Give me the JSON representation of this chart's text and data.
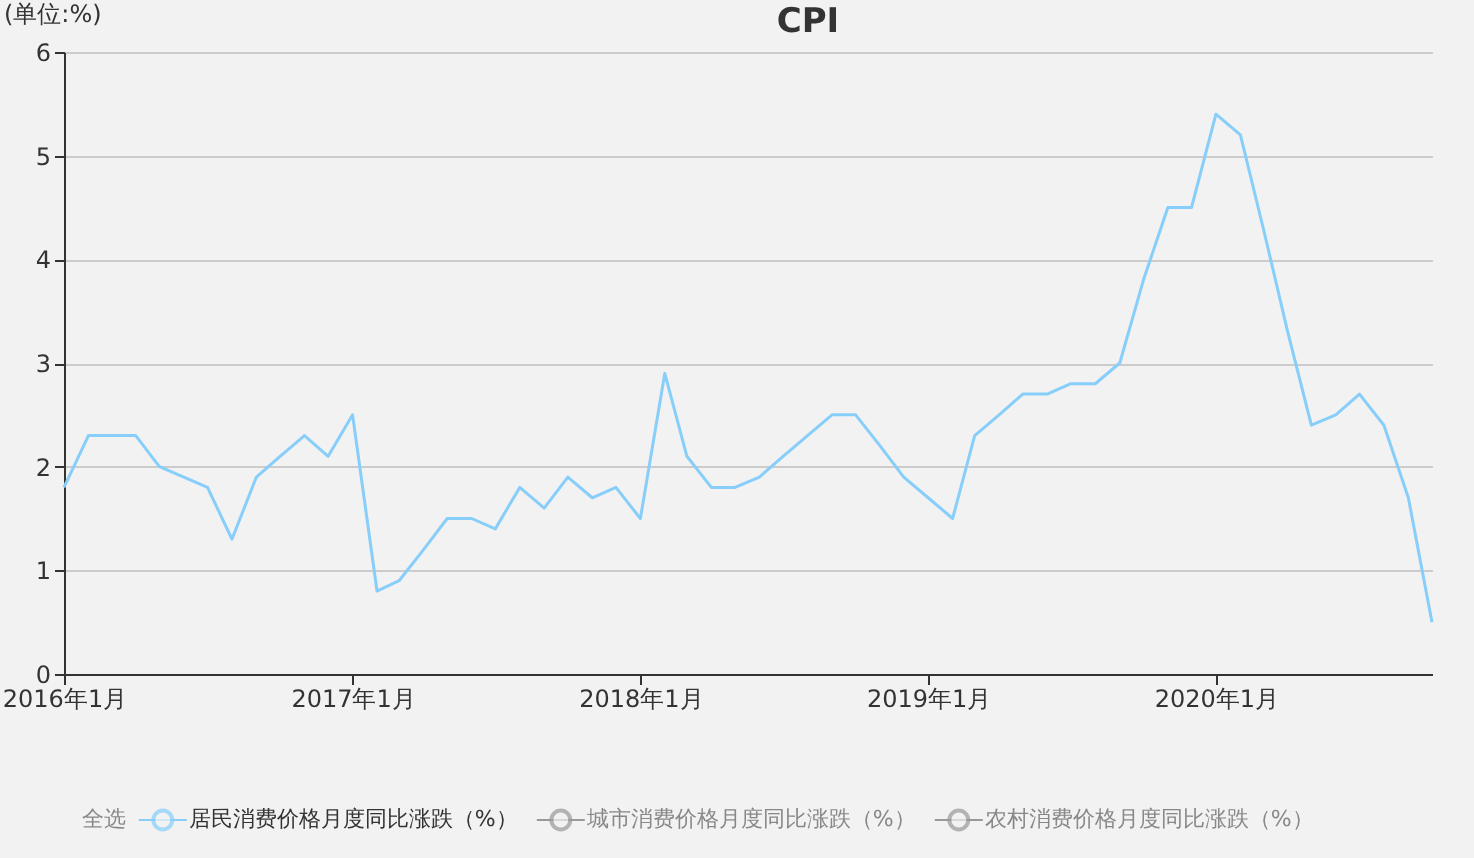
{
  "chart_data": {
    "type": "line",
    "title": "CPI",
    "ylabel": "(单位:%)",
    "x": [
      "2016-01",
      "2016-02",
      "2016-03",
      "2016-04",
      "2016-05",
      "2016-06",
      "2016-07",
      "2016-08",
      "2016-09",
      "2016-10",
      "2016-11",
      "2016-12",
      "2017-01",
      "2017-02",
      "2017-03",
      "2017-04",
      "2017-05",
      "2017-06",
      "2017-07",
      "2017-08",
      "2017-09",
      "2017-10",
      "2017-11",
      "2017-12",
      "2018-01",
      "2018-02",
      "2018-03",
      "2018-04",
      "2018-05",
      "2018-06",
      "2018-07",
      "2018-08",
      "2018-09",
      "2018-10",
      "2018-11",
      "2018-12",
      "2019-01",
      "2019-02",
      "2019-03",
      "2019-04",
      "2019-05",
      "2019-06",
      "2019-07",
      "2019-08",
      "2019-09",
      "2019-10",
      "2019-11",
      "2019-12",
      "2020-01",
      "2020-02",
      "2020-03",
      "2020-04",
      "2020-05",
      "2020-06",
      "2020-07",
      "2020-08",
      "2020-09",
      "2020-10"
    ],
    "series": [
      {
        "name": "居民消费价格月度同比涨跌（%）",
        "color": "#87cefa",
        "values": [
          1.8,
          2.3,
          2.3,
          2.3,
          2.0,
          1.9,
          1.8,
          1.3,
          1.9,
          2.1,
          2.3,
          2.1,
          2.5,
          0.8,
          0.9,
          1.2,
          1.5,
          1.5,
          1.4,
          1.8,
          1.6,
          1.9,
          1.7,
          1.8,
          1.5,
          2.9,
          2.1,
          1.8,
          1.8,
          1.9,
          2.1,
          2.3,
          2.5,
          2.5,
          2.2,
          1.9,
          1.7,
          1.5,
          2.3,
          2.5,
          2.7,
          2.7,
          2.8,
          2.8,
          3.0,
          3.8,
          4.5,
          4.5,
          5.4,
          5.2,
          4.3,
          3.3,
          2.4,
          2.5,
          2.7,
          2.4,
          1.7,
          0.5
        ]
      },
      {
        "name": "城市消费价格月度同比涨跌（%）",
        "color": "#999999",
        "values": [
          null,
          null,
          null,
          null,
          null,
          null,
          null,
          null,
          null,
          null,
          null,
          null,
          null,
          null,
          null,
          null,
          null,
          null,
          null,
          null,
          null,
          null,
          null,
          null,
          null,
          null,
          null,
          null,
          null,
          null,
          null,
          null,
          null,
          null,
          null,
          null,
          null,
          null,
          null,
          null,
          null,
          null,
          null,
          null,
          null,
          null,
          null,
          null,
          null,
          null,
          null,
          null,
          null,
          null,
          null,
          null,
          null,
          null
        ]
      },
      {
        "name": "农村消费价格月度同比涨跌（%）",
        "color": "#999999",
        "values": [
          null,
          null,
          null,
          null,
          null,
          null,
          null,
          null,
          null,
          null,
          null,
          null,
          null,
          null,
          null,
          null,
          null,
          null,
          null,
          null,
          null,
          null,
          null,
          null,
          null,
          null,
          null,
          null,
          null,
          null,
          null,
          null,
          null,
          null,
          null,
          null,
          null,
          null,
          null,
          null,
          null,
          null,
          null,
          null,
          null,
          null,
          null,
          null,
          null,
          null,
          null,
          null,
          null,
          null,
          null,
          null,
          null,
          null
        ]
      }
    ],
    "annotations": [
      "全选"
    ],
    "xlim": [
      "2016-01",
      "2020-10"
    ],
    "xticks": [
      {
        "value": "2016-01",
        "label": "2016年1月"
      },
      {
        "value": "2017-01",
        "label": "2017年1月"
      },
      {
        "value": "2018-01",
        "label": "2018年1月"
      },
      {
        "value": "2019-01",
        "label": "2019年1月"
      },
      {
        "value": "2020-01",
        "label": "2020年1月"
      }
    ],
    "ylim": [
      0,
      6
    ],
    "yticks": [
      0,
      1,
      2,
      3,
      4,
      5,
      6
    ],
    "grid": "y",
    "legend": "bottom",
    "marker": "none",
    "line_style": "solid"
  }
}
